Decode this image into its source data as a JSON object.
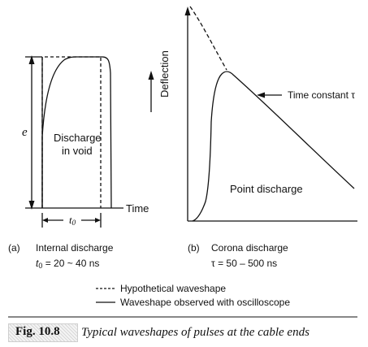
{
  "panel_a": {
    "amplitude_label": "e",
    "inside_label_line1": "Discharge",
    "inside_label_line2": "in void",
    "time_axis_label": "Time",
    "width_label_main": "t",
    "width_label_sub": "0",
    "caption_prefix": "(a)",
    "caption_title": "Internal discharge",
    "param_main": "t",
    "param_sub": "0",
    "param_value": " = 20 ~ 40 ns"
  },
  "panel_b": {
    "y_axis_label": "Deflection",
    "time_constant_label": "Time constant  τ",
    "point_label": "Point discharge",
    "caption_prefix": "(b)",
    "caption_title": "Corona discharge",
    "param_value": "τ = 50 – 500 ns"
  },
  "legend": {
    "items": [
      {
        "style": "dashed",
        "label": "Hypothetical waveshape"
      },
      {
        "style": "solid",
        "label": "Waveshape observed with oscilloscope"
      }
    ]
  },
  "figure_caption": {
    "number": "Fig. 10.8",
    "text": "Typical waveshapes of pulses at the cable ends"
  },
  "colors": {
    "ink": "#111111",
    "caption_box": "#e4e4e4"
  }
}
